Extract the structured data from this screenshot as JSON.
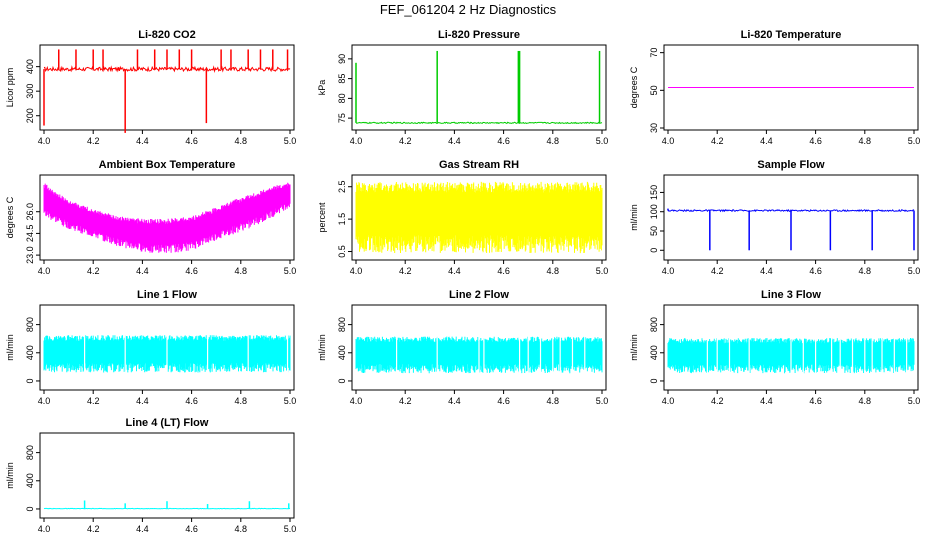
{
  "figure": {
    "title": "FEF_061204  2 Hz Diagnostics"
  },
  "chart_data": [
    {
      "id": "co2",
      "type": "line",
      "title": "Li-820 CO2",
      "ylabel": "Licor ppm",
      "color": "#ff0000",
      "xlim": [
        4.0,
        5.0
      ],
      "ylim": [
        150,
        480
      ],
      "x_ticks": [
        "4.0",
        "4.2",
        "4.4",
        "4.6",
        "4.8",
        "5.0"
      ],
      "y_ticks": [
        "200",
        "300",
        "400"
      ],
      "series": [
        {
          "name": "CO2",
          "baseline": 390,
          "noise": 8,
          "spikes": [
            [
              4.0,
              160
            ],
            [
              4.06,
              470
            ],
            [
              4.13,
              470
            ],
            [
              4.2,
              470
            ],
            [
              4.24,
              470
            ],
            [
              4.33,
              130
            ],
            [
              4.38,
              470
            ],
            [
              4.45,
              470
            ],
            [
              4.5,
              470
            ],
            [
              4.55,
              470
            ],
            [
              4.6,
              470
            ],
            [
              4.66,
              170
            ],
            [
              4.72,
              470
            ],
            [
              4.76,
              470
            ],
            [
              4.83,
              470
            ],
            [
              4.88,
              470
            ],
            [
              4.93,
              470
            ],
            [
              4.99,
              470
            ]
          ]
        }
      ]
    },
    {
      "id": "pressure",
      "type": "line",
      "title": "Li-820 Pressure",
      "ylabel": "kPa",
      "color": "#00cc00",
      "xlim": [
        4.0,
        5.0
      ],
      "ylim": [
        72.5,
        93
      ],
      "x_ticks": [
        "4.0",
        "4.2",
        "4.4",
        "4.6",
        "4.8",
        "5.0"
      ],
      "y_ticks": [
        "75",
        "80",
        "85",
        "90"
      ],
      "series": [
        {
          "name": "Pressure",
          "baseline": 73.8,
          "noise": 0.15,
          "spikes": [
            [
              4.0,
              89
            ],
            [
              4.33,
              92
            ],
            [
              4.66,
              92
            ],
            [
              4.665,
              92
            ],
            [
              4.99,
              92
            ]
          ]
        }
      ]
    },
    {
      "id": "temp",
      "type": "line",
      "title": "Li-820 Temperature",
      "ylabel": "degrees C",
      "color": "#ff00ff",
      "xlim": [
        4.0,
        5.0
      ],
      "ylim": [
        30,
        73
      ],
      "x_ticks": [
        "4.0",
        "4.2",
        "4.4",
        "4.6",
        "4.8",
        "5.0"
      ],
      "y_ticks": [
        "30",
        "50",
        "70"
      ],
      "series": [
        {
          "name": "Temperature",
          "baseline": 51.5,
          "noise": 0,
          "spikes": []
        }
      ]
    },
    {
      "id": "ambient",
      "type": "line",
      "title": "Ambient Box Temperature",
      "ylabel": "degrees C",
      "color": "#ff00ff",
      "xlim": [
        4.0,
        5.0
      ],
      "ylim": [
        22.8,
        28.4
      ],
      "x_ticks": [
        "4.0",
        "4.2",
        "4.4",
        "4.6",
        "4.8",
        "5.0"
      ],
      "y_ticks": [
        "23.0",
        "24.5",
        "26.0"
      ],
      "series": [
        {
          "name": "Ambient",
          "band": true,
          "upper": [
            [
              4.0,
              28.0
            ],
            [
              4.1,
              26.8
            ],
            [
              4.2,
              26.2
            ],
            [
              4.3,
              25.7
            ],
            [
              4.4,
              25.5
            ],
            [
              4.5,
              25.5
            ],
            [
              4.6,
              25.7
            ],
            [
              4.7,
              26.3
            ],
            [
              4.8,
              27.0
            ],
            [
              4.9,
              27.6
            ],
            [
              5.0,
              28.1
            ]
          ],
          "lower": [
            [
              4.0,
              25.6
            ],
            [
              4.1,
              24.8
            ],
            [
              4.2,
              24.2
            ],
            [
              4.3,
              23.6
            ],
            [
              4.4,
              23.2
            ],
            [
              4.5,
              23.1
            ],
            [
              4.6,
              23.3
            ],
            [
              4.7,
              24.0
            ],
            [
              4.8,
              24.6
            ],
            [
              4.9,
              25.3
            ],
            [
              5.0,
              26.3
            ]
          ]
        }
      ]
    },
    {
      "id": "rh",
      "type": "line",
      "title": "Gas Stream RH",
      "ylabel": "percent",
      "color": "#ffff00",
      "xlim": [
        4.0,
        5.0
      ],
      "ylim": [
        0.3,
        2.8
      ],
      "x_ticks": [
        "4.0",
        "4.2",
        "4.4",
        "4.6",
        "4.8",
        "5.0"
      ],
      "y_ticks": [
        "0.5",
        "1.5",
        "2.5"
      ],
      "series": [
        {
          "name": "RH",
          "band": true,
          "upper": [
            [
              4.0,
              2.65
            ],
            [
              5.0,
              2.65
            ]
          ],
          "lower": [
            [
              4.0,
              0.45
            ],
            [
              5.0,
              0.45
            ]
          ]
        }
      ]
    },
    {
      "id": "sample",
      "type": "line",
      "title": "Sample Flow",
      "ylabel": "ml/min",
      "color": "#0000ff",
      "xlim": [
        4.0,
        5.0
      ],
      "ylim": [
        -20,
        190
      ],
      "x_ticks": [
        "4.0",
        "4.2",
        "4.4",
        "4.6",
        "4.8",
        "5.0"
      ],
      "y_ticks": [
        "0",
        "50",
        "100",
        "150"
      ],
      "series": [
        {
          "name": "Sample Flow",
          "baseline": 103,
          "noise": 2,
          "spikes": [
            [
              4.0,
              108
            ],
            [
              4.17,
              0
            ],
            [
              4.33,
              0
            ],
            [
              4.5,
              0
            ],
            [
              4.66,
              0
            ],
            [
              4.83,
              0
            ],
            [
              5.0,
              0
            ]
          ]
        }
      ]
    },
    {
      "id": "line1",
      "type": "line",
      "title": "Line 1 Flow",
      "ylabel": "ml/min",
      "color": "#00ffff",
      "xlim": [
        4.0,
        5.0
      ],
      "ylim": [
        -100,
        1050
      ],
      "x_ticks": [
        "4.0",
        "4.2",
        "4.4",
        "4.6",
        "4.8",
        "5.0"
      ],
      "y_ticks": [
        "0",
        "400",
        "800"
      ],
      "series": [
        {
          "name": "Line 1 Flow",
          "band": true,
          "upper": [
            [
              4.0,
              650
            ],
            [
              5.0,
              650
            ]
          ],
          "lower": [
            [
              4.0,
              120
            ],
            [
              5.0,
              120
            ]
          ],
          "gaps": [
            4.165,
            4.33,
            4.5,
            4.665,
            4.83,
            4.99
          ]
        }
      ]
    },
    {
      "id": "line2",
      "type": "line",
      "title": "Line 2 Flow",
      "ylabel": "ml/min",
      "color": "#00ffff",
      "xlim": [
        4.0,
        5.0
      ],
      "ylim": [
        -100,
        1050
      ],
      "x_ticks": [
        "4.0",
        "4.2",
        "4.4",
        "4.6",
        "4.8",
        "5.0"
      ],
      "y_ticks": [
        "0",
        "400",
        "800"
      ],
      "series": [
        {
          "name": "Line 2 Flow",
          "band": true,
          "upper": [
            [
              4.0,
              630
            ],
            [
              5.0,
              630
            ]
          ],
          "lower": [
            [
              4.0,
              110
            ],
            [
              5.0,
              110
            ]
          ],
          "gaps": [
            4.165,
            4.33,
            4.5,
            4.52,
            4.665,
            4.7,
            4.75,
            4.8,
            4.83,
            4.88,
            4.93
          ]
        }
      ]
    },
    {
      "id": "line3",
      "type": "line",
      "title": "Line 3 Flow",
      "ylabel": "ml/min",
      "color": "#00ffff",
      "xlim": [
        4.0,
        5.0
      ],
      "ylim": [
        -100,
        1050
      ],
      "x_ticks": [
        "4.0",
        "4.2",
        "4.4",
        "4.6",
        "4.8",
        "5.0"
      ],
      "y_ticks": [
        "0",
        "400",
        "800"
      ],
      "series": [
        {
          "name": "Line 3 Flow",
          "band": true,
          "upper": [
            [
              4.0,
              610
            ],
            [
              5.0,
              610
            ]
          ],
          "lower": [
            [
              4.0,
              110
            ],
            [
              5.0,
              110
            ]
          ],
          "gaps": [
            4.16,
            4.2,
            4.25,
            4.33,
            4.5,
            4.55,
            4.6,
            4.665,
            4.7,
            4.75,
            4.8,
            4.83,
            4.87,
            4.92,
            4.97
          ]
        }
      ]
    },
    {
      "id": "line4",
      "type": "line",
      "title": "Line 4 (LT) Flow",
      "ylabel": "ml/min",
      "color": "#00ffff",
      "xlim": [
        4.0,
        5.0
      ],
      "ylim": [
        -100,
        1050
      ],
      "x_ticks": [
        "4.0",
        "4.2",
        "4.4",
        "4.6",
        "4.8",
        "5.0"
      ],
      "y_ticks": [
        "0",
        "400",
        "800"
      ],
      "series": [
        {
          "name": "Line 4 Flow",
          "baseline": 5,
          "noise": 3,
          "spikes": [
            [
              4.165,
              120
            ],
            [
              4.33,
              80
            ],
            [
              4.5,
              110
            ],
            [
              4.665,
              70
            ],
            [
              4.835,
              110
            ],
            [
              4.995,
              80
            ]
          ]
        }
      ]
    }
  ]
}
